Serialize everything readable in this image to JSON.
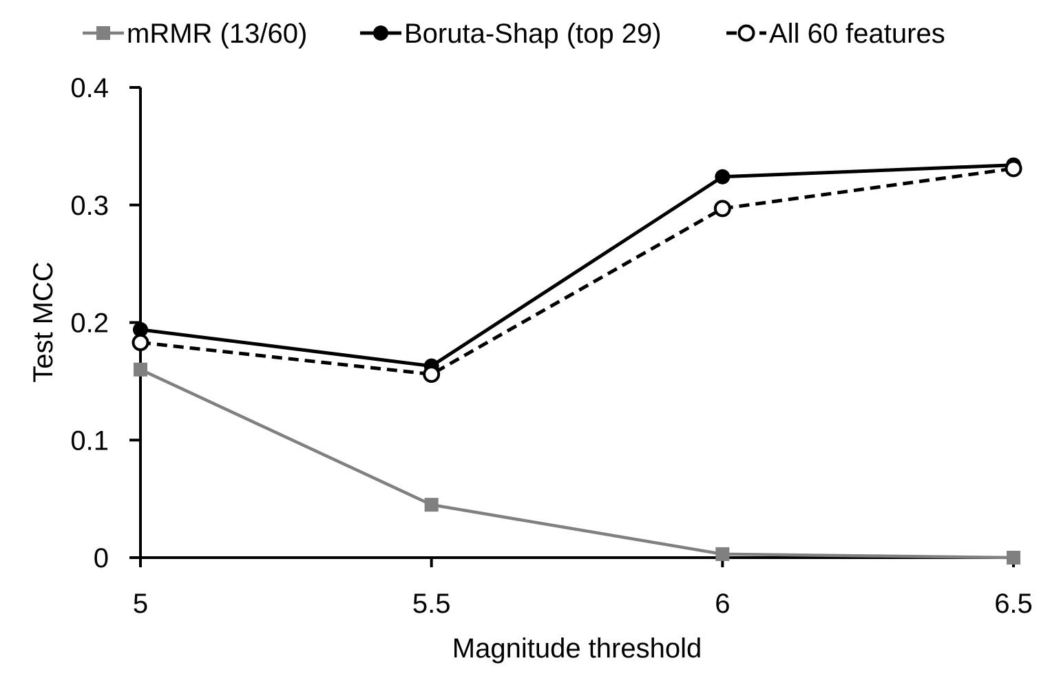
{
  "chart_data": {
    "type": "line",
    "title": "",
    "xlabel": "Magnitude threshold",
    "ylabel": "Test MCC",
    "x": [
      5,
      5.5,
      6,
      6.5
    ],
    "x_tick_labels": [
      "5",
      "5.5",
      "6",
      "6.5"
    ],
    "ylim": [
      0,
      0.4
    ],
    "y_ticks": [
      0,
      0.1,
      0.2,
      0.3,
      0.4
    ],
    "y_tick_labels": [
      "0",
      "0.1",
      "0.2",
      "0.3",
      "0.4"
    ],
    "grid": false,
    "legend_position": "top",
    "series": [
      {
        "name": "mRMR (13/60)",
        "values": [
          0.16,
          0.045,
          0.003,
          0.0
        ],
        "color": "#808080",
        "marker": "square",
        "line_style": "solid"
      },
      {
        "name": "Boruta-Shap (top 29)",
        "values": [
          0.194,
          0.163,
          0.324,
          0.334
        ],
        "color": "#000000",
        "marker": "filled-circle",
        "line_style": "solid"
      },
      {
        "name": "All 60 features",
        "values": [
          0.183,
          0.156,
          0.297,
          0.331
        ],
        "color": "#000000",
        "marker": "open-circle",
        "line_style": "dashed"
      }
    ]
  }
}
